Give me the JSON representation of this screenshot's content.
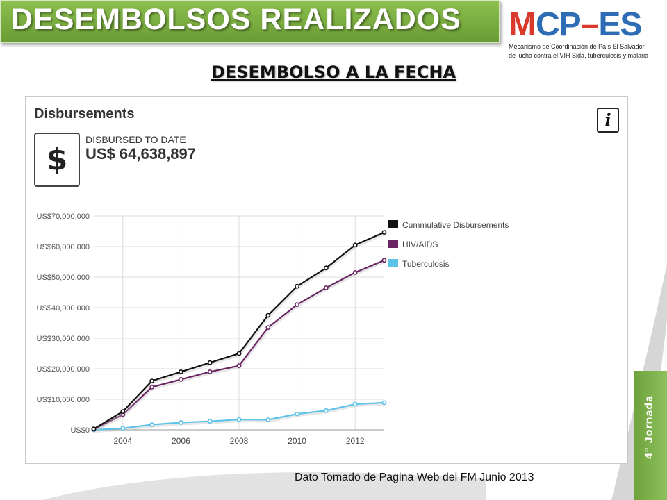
{
  "slide": {
    "title": "DESEMBOLSOS REALIZADOS",
    "subtitle": "DESEMBOLSO A LA FECHA",
    "footnote": "Dato Tomado de Pagina Web del FM Junio 2013",
    "side_tab": "4° Jornada",
    "colors": {
      "banner": "#7aaf42",
      "side_tab": "#7ab548"
    }
  },
  "logo": {
    "mark_parts": [
      "M",
      "C",
      "P",
      "–",
      "ES"
    ],
    "mark_colors": [
      "#d93a2b",
      "#2e6db5",
      "#2e6db5",
      "#d93a2b",
      "#2e6db5"
    ],
    "line1": "Mecanismo de Coordinación de País El Salvador",
    "line2": "de lucha contra el VIH Sida, tuberculosis y malaria"
  },
  "panel": {
    "heading": "Disbursements",
    "info_icon": "info-icon",
    "dollar_icon": "$",
    "stat_label": "DISBURSED TO DATE",
    "stat_value": "US$ 64,638,897"
  },
  "chart_data": {
    "type": "line",
    "title": "",
    "xlabel": "",
    "ylabel": "",
    "x": [
      2003,
      2004,
      2005,
      2006,
      2007,
      2008,
      2009,
      2010,
      2011,
      2012,
      2013
    ],
    "x_tick_labels": [
      "2004",
      "2006",
      "2008",
      "2010",
      "2012"
    ],
    "x_ticks": [
      2004,
      2006,
      2008,
      2010,
      2012
    ],
    "xlim": [
      2003,
      2013
    ],
    "ylim": [
      0,
      70000000
    ],
    "y_ticks": [
      0,
      10000000,
      20000000,
      30000000,
      40000000,
      50000000,
      60000000,
      70000000
    ],
    "y_tick_labels": [
      "US$0",
      "US$10,000,000",
      "US$20,000,000",
      "US$30,000,000",
      "US$40,000,000",
      "US$50,000,000",
      "US$60,000,000",
      "US$70,000,000"
    ],
    "grid": true,
    "legend_position": "top-right",
    "series": [
      {
        "name": "Cummulative Disbursements",
        "color": "#111111",
        "values": [
          300000,
          6000000,
          16000000,
          19000000,
          22000000,
          25000000,
          37500000,
          47000000,
          53000000,
          60500000,
          64638897
        ]
      },
      {
        "name": "HIV/AIDS",
        "color": "#6b2463",
        "values": [
          200000,
          5000000,
          14000000,
          16500000,
          19000000,
          21000000,
          33500000,
          41000000,
          46500000,
          51500000,
          55500000
        ]
      },
      {
        "name": "Tuberculosis",
        "color": "#5bc3e8",
        "values": [
          0,
          500000,
          1700000,
          2400000,
          2800000,
          3400000,
          3300000,
          5200000,
          6300000,
          8400000,
          8900000
        ]
      }
    ]
  }
}
